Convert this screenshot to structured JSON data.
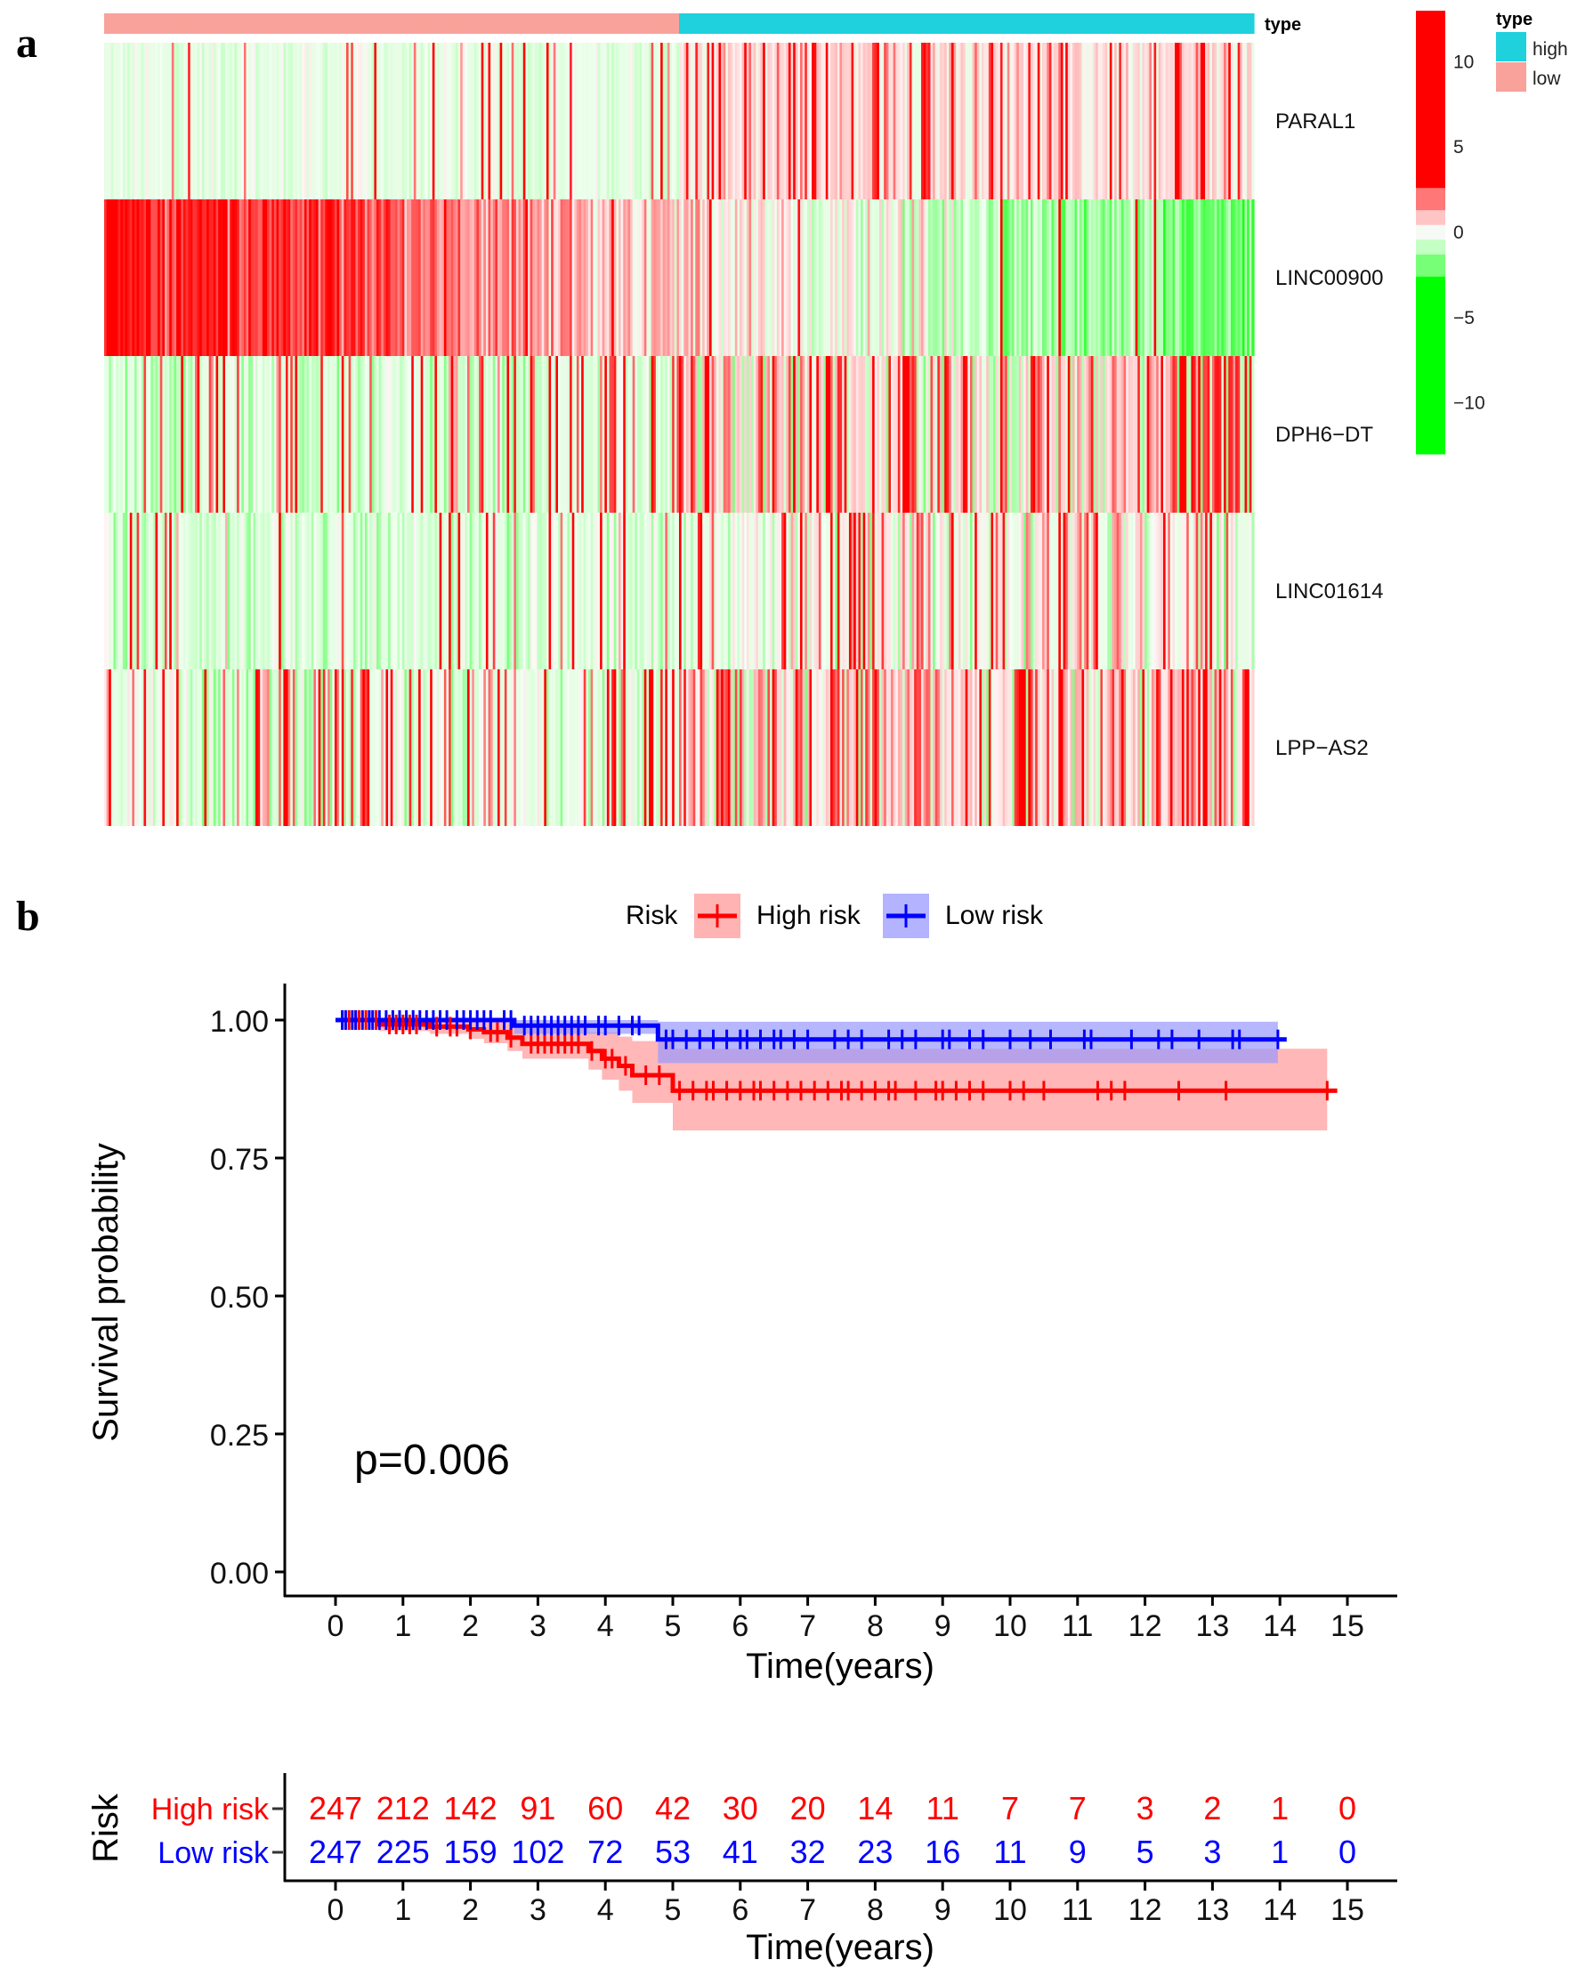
{
  "panel_labels": {
    "a": "a",
    "b": "b"
  },
  "chart_data": [
    {
      "type": "heatmap",
      "panel": "a",
      "annotation_title": "type",
      "groups": [
        {
          "name": "low",
          "count": 247,
          "color": "#F8A29B"
        },
        {
          "name": "high",
          "count": 247,
          "color": "#1ED1DD"
        }
      ],
      "rows": [
        "PARAL1",
        "LINC00900",
        "DPH6−DT",
        "LINC01614",
        "LPP−AS2"
      ],
      "row_profiles": [
        {
          "gene": "PARAL1",
          "low_mean": -0.3,
          "high_mean": 0.5,
          "spike_rate_low": 0.08,
          "spike_rate_high": 0.22
        },
        {
          "gene": "LINC00900",
          "low_mean": 3.5,
          "high_mean": -2.2,
          "spike_rate_low": 0.1,
          "spike_rate_high": 0.05
        },
        {
          "gene": "DPH6−DT",
          "low_mean": -0.4,
          "high_mean": 0.6,
          "spike_rate_low": 0.2,
          "spike_rate_high": 0.3
        },
        {
          "gene": "LINC01614",
          "low_mean": -0.3,
          "high_mean": 0.2,
          "spike_rate_low": 0.06,
          "spike_rate_high": 0.22
        },
        {
          "gene": "LPP−AS2",
          "low_mean": -0.2,
          "high_mean": 0.7,
          "spike_rate_low": 0.2,
          "spike_rate_high": 0.35
        }
      ],
      "colorbar": {
        "ticks": [
          10,
          5,
          0,
          -5,
          -10
        ],
        "tick_labels": [
          "10",
          "5",
          "0",
          "−5",
          "−10"
        ],
        "range": [
          -13,
          13
        ],
        "low_color": "#00FF00",
        "mid_color": "#FFFFFF",
        "high_color": "#FF0000"
      },
      "legend": {
        "title": "type",
        "items": [
          {
            "label": "high",
            "color": "#1ED1DD"
          },
          {
            "label": "low",
            "color": "#F8A29B"
          }
        ]
      }
    },
    {
      "type": "line",
      "panel": "b",
      "subtype": "kaplan-meier",
      "xlabel": "Time(years)",
      "ylabel": "Survival probability",
      "xlim": [
        0,
        15
      ],
      "ylim": [
        0,
        1
      ],
      "x_ticks": [
        0,
        1,
        2,
        3,
        4,
        5,
        6,
        7,
        8,
        9,
        10,
        11,
        12,
        13,
        14,
        15
      ],
      "y_ticks": [
        0.0,
        0.25,
        0.5,
        0.75,
        1.0
      ],
      "y_tick_labels": [
        "0.00",
        "0.25",
        "0.50",
        "0.75",
        "1.00"
      ],
      "pvalue_text": "p=0.006",
      "legend": {
        "title": "Risk",
        "position": "top"
      },
      "series": [
        {
          "name": "High risk",
          "color": "#FF0000",
          "ci_color": "#FF9999",
          "steps": [
            [
              0,
              1.0
            ],
            [
              0.64,
              0.992
            ],
            [
              1.4,
              0.988
            ],
            [
              1.97,
              0.983
            ],
            [
              2.2,
              0.978
            ],
            [
              2.55,
              0.968
            ],
            [
              2.77,
              0.957
            ],
            [
              3.75,
              0.944
            ],
            [
              3.95,
              0.93
            ],
            [
              4.2,
              0.917
            ],
            [
              4.4,
              0.9
            ],
            [
              5.0,
              0.872
            ]
          ],
          "ci_lower": [
            [
              0,
              1.0
            ],
            [
              0.64,
              0.98
            ],
            [
              1.4,
              0.975
            ],
            [
              1.97,
              0.966
            ],
            [
              2.2,
              0.958
            ],
            [
              2.55,
              0.944
            ],
            [
              2.77,
              0.93
            ],
            [
              3.75,
              0.91
            ],
            [
              3.95,
              0.892
            ],
            [
              4.2,
              0.872
            ],
            [
              4.4,
              0.85
            ],
            [
              5.0,
              0.8
            ]
          ],
          "ci_upper": [
            [
              0,
              1.0
            ],
            [
              2.55,
              0.995
            ],
            [
              2.77,
              0.985
            ],
            [
              3.75,
              0.978
            ],
            [
              4.2,
              0.97
            ],
            [
              4.4,
              0.962
            ],
            [
              5.0,
              0.948
            ]
          ],
          "end_time": 14.85,
          "ci_end_time": 14.7,
          "censor_times": [
            0.1,
            0.2,
            0.3,
            0.35,
            0.45,
            0.5,
            0.6,
            0.8,
            0.9,
            1.0,
            1.1,
            1.2,
            1.5,
            1.7,
            1.8,
            2.0,
            2.3,
            2.4,
            2.6,
            2.9,
            3.0,
            3.1,
            3.2,
            3.3,
            3.4,
            3.5,
            3.6,
            3.8,
            4.0,
            4.1,
            4.3,
            4.6,
            4.8,
            5.1,
            5.3,
            5.5,
            5.6,
            5.8,
            6.0,
            6.2,
            6.3,
            6.5,
            6.7,
            6.9,
            7.1,
            7.3,
            7.5,
            7.6,
            7.8,
            8.0,
            8.2,
            8.3,
            8.6,
            8.9,
            9.0,
            9.2,
            9.4,
            9.6,
            10.0,
            10.2,
            10.5,
            11.3,
            11.5,
            11.7,
            12.5,
            13.2,
            14.7
          ],
          "at_risk": [
            247,
            212,
            142,
            91,
            60,
            42,
            30,
            20,
            14,
            11,
            7,
            7,
            3,
            2,
            1,
            0
          ]
        },
        {
          "name": "Low risk",
          "color": "#0000FF",
          "ci_color": "#9999FF",
          "steps": [
            [
              0,
              1.0
            ],
            [
              2.65,
              0.99
            ],
            [
              4.78,
              0.965
            ]
          ],
          "ci_lower": [
            [
              0,
              1.0
            ],
            [
              2.65,
              0.975
            ],
            [
              4.78,
              0.922
            ]
          ],
          "ci_upper": [
            [
              0,
              1.0
            ],
            [
              4.78,
              0.997
            ]
          ],
          "end_time": 14.1,
          "ci_end_time": 13.97,
          "censor_times": [
            0.1,
            0.15,
            0.25,
            0.3,
            0.4,
            0.5,
            0.55,
            0.65,
            0.75,
            0.85,
            0.95,
            1.05,
            1.15,
            1.25,
            1.35,
            1.45,
            1.55,
            1.65,
            1.8,
            1.9,
            2.0,
            2.1,
            2.2,
            2.3,
            2.5,
            2.6,
            2.8,
            2.9,
            3.0,
            3.1,
            3.2,
            3.3,
            3.4,
            3.5,
            3.6,
            3.7,
            3.9,
            4.0,
            4.2,
            4.4,
            4.5,
            4.9,
            5.0,
            5.2,
            5.4,
            5.6,
            5.8,
            6.0,
            6.1,
            6.3,
            6.5,
            6.6,
            6.8,
            7.0,
            7.4,
            7.6,
            7.8,
            8.2,
            8.4,
            8.6,
            9.0,
            9.1,
            9.4,
            9.6,
            10.0,
            10.3,
            10.6,
            11.1,
            11.2,
            11.8,
            12.2,
            12.4,
            12.8,
            13.3,
            13.4,
            13.97
          ],
          "at_risk": [
            247,
            225,
            159,
            102,
            72,
            53,
            41,
            32,
            23,
            16,
            11,
            9,
            5,
            3,
            1,
            0
          ]
        }
      ]
    },
    {
      "type": "table",
      "panel": "b-risk-table",
      "title": "Risk",
      "xlabel": "Time(years)",
      "x_ticks": [
        0,
        1,
        2,
        3,
        4,
        5,
        6,
        7,
        8,
        9,
        10,
        11,
        12,
        13,
        14,
        15
      ],
      "rows": [
        {
          "label": "High risk",
          "color": "#FF0000",
          "values": [
            247,
            212,
            142,
            91,
            60,
            42,
            30,
            20,
            14,
            11,
            7,
            7,
            3,
            2,
            1,
            0
          ]
        },
        {
          "label": "Low risk",
          "color": "#0000FF",
          "values": [
            247,
            225,
            159,
            102,
            72,
            53,
            41,
            32,
            23,
            16,
            11,
            9,
            5,
            3,
            1,
            0
          ]
        }
      ]
    }
  ]
}
